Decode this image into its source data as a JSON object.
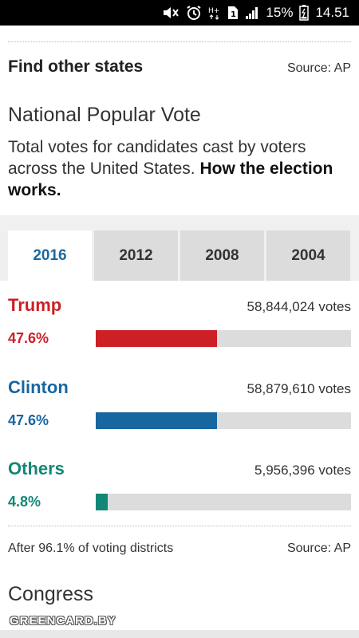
{
  "status_bar": {
    "battery": "15%",
    "time": "14.51",
    "icons": [
      "mute-icon",
      "alarm-icon",
      "hplus-icon",
      "sim-icon",
      "signal-icon",
      "battery-icon"
    ]
  },
  "find": {
    "title": "Find other states",
    "source": "Source: AP"
  },
  "section": {
    "title": "National Popular Vote",
    "description": "Total votes for candidates cast by voters across the United States.",
    "link": "How the election works."
  },
  "tabs": [
    {
      "label": "2016",
      "active": true
    },
    {
      "label": "2012",
      "active": false
    },
    {
      "label": "2008",
      "active": false
    },
    {
      "label": "2004",
      "active": false
    }
  ],
  "candidates": [
    {
      "name": "Trump",
      "votes": "58,844,024 votes",
      "pct": "47.6%",
      "fraction": 0.476,
      "color": "#cc1f26"
    },
    {
      "name": "Clinton",
      "votes": "58,879,610 votes",
      "pct": "47.6%",
      "fraction": 0.476,
      "color": "#1766a0"
    },
    {
      "name": "Others",
      "votes": "5,956,396 votes",
      "pct": "4.8%",
      "fraction": 0.048,
      "color": "#138776"
    }
  ],
  "footer": {
    "note": "After 96.1% of voting districts",
    "source": "Source: AP"
  },
  "next_section": "Congress",
  "watermark": "GREENCARD.BY"
}
